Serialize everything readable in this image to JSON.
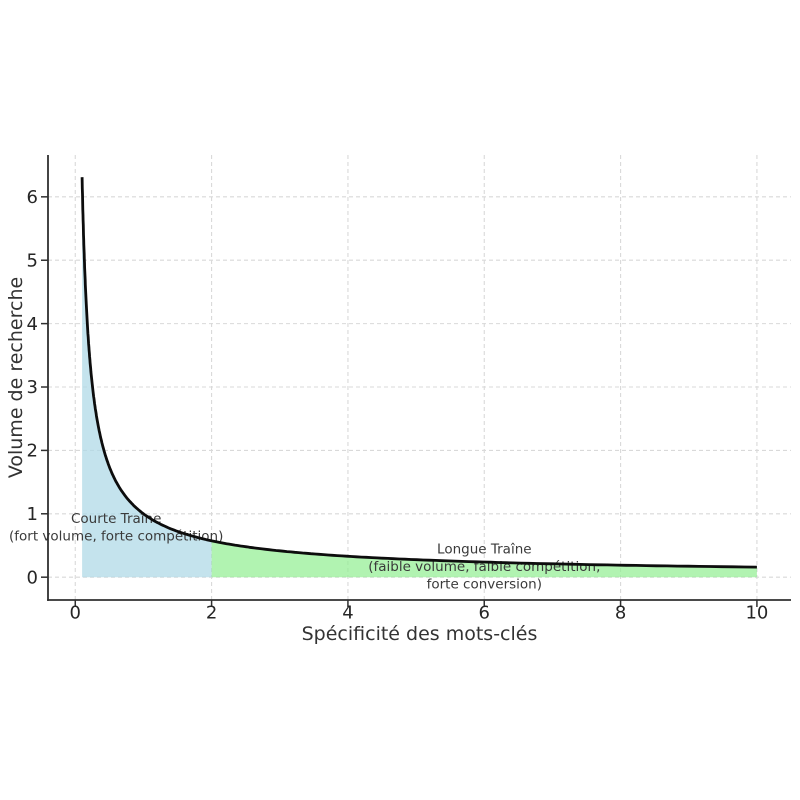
{
  "page": {
    "background": "#ffffff"
  },
  "chart_data": {
    "type": "area",
    "title": "",
    "xlabel": "Spécificité des mots-clés",
    "ylabel": "Volume de recherche",
    "x_ticks": [
      0,
      2,
      4,
      6,
      8,
      10
    ],
    "y_ticks": [
      0,
      1,
      2,
      3,
      4,
      5,
      6
    ],
    "xlim": [
      -0.4,
      10.5
    ],
    "ylim": [
      -0.36,
      6.66
    ],
    "grid": {
      "visible": true,
      "style": "dashed",
      "color": "#d9d9d9"
    },
    "curve": {
      "formula": "y = x^-0.8",
      "exponent": -0.8,
      "x_min": 0.1,
      "x_max": 10,
      "color": "#0d0d0d",
      "width": 2.8,
      "points": [
        [
          0.1,
          6.31
        ],
        [
          0.15,
          4.56
        ],
        [
          0.2,
          3.62
        ],
        [
          0.3,
          2.62
        ],
        [
          0.4,
          2.08
        ],
        [
          0.5,
          1.74
        ],
        [
          0.7,
          1.33
        ],
        [
          1.0,
          1.0
        ],
        [
          1.5,
          0.72
        ],
        [
          2.0,
          0.57
        ],
        [
          3.0,
          0.42
        ],
        [
          4.0,
          0.33
        ],
        [
          5.0,
          0.28
        ],
        [
          6.0,
          0.24
        ],
        [
          7.0,
          0.21
        ],
        [
          8.0,
          0.19
        ],
        [
          9.0,
          0.17
        ],
        [
          10.0,
          0.16
        ]
      ]
    },
    "regions": [
      {
        "name": "courte-traine",
        "x_min": 0.1,
        "x_max": 2,
        "fill": "#ADD8E6",
        "opacity": 0.72
      },
      {
        "name": "longue-traine",
        "x_min": 2,
        "x_max": 10,
        "fill": "#90EE90",
        "opacity": 0.7
      }
    ],
    "annotations": [
      {
        "name": "courte-traine-label",
        "x": 0.6,
        "y": 0.79,
        "color": "#3a3a3a",
        "lines": [
          "Courte Traîne",
          "(fort volume, forte compétition)"
        ]
      },
      {
        "name": "longue-traine-label",
        "x": 6.0,
        "y": 0.17,
        "color": "#3a3a3a",
        "lines": [
          "Longue Traîne",
          "(faible volume, faible compétition,",
          "forte conversion)"
        ]
      }
    ]
  }
}
